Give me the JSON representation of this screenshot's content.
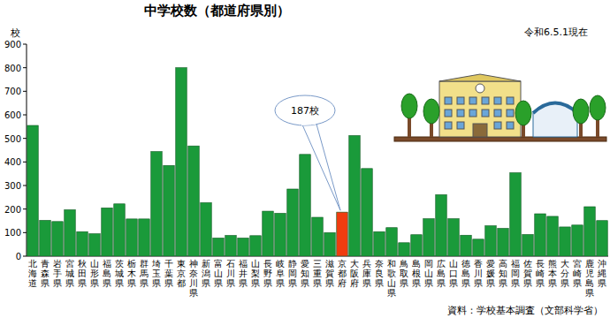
{
  "chart_data": {
    "type": "bar",
    "title": "中学校数（都道府県別）",
    "subtitle": "令和6.5.1現在",
    "y_label": "校",
    "source": "資料：学校基本調査（文部科学省）",
    "categories": [
      "北海道",
      "青森県",
      "岩手県",
      "宮城県",
      "秋田県",
      "山形県",
      "福島県",
      "茨城県",
      "栃木県",
      "群馬県",
      "埼玉県",
      "千葉県",
      "東京都",
      "神奈川県",
      "新潟県",
      "富山県",
      "石川県",
      "福井県",
      "山梨県",
      "長野県",
      "岐阜県",
      "静岡県",
      "愛知県",
      "三重県",
      "滋賀県",
      "京都府",
      "大阪府",
      "兵庫県",
      "奈良県",
      "和歌山県",
      "鳥取県",
      "島根県",
      "岡山県",
      "広島県",
      "山口県",
      "徳島県",
      "香川県",
      "愛媛県",
      "高知県",
      "福岡県",
      "佐賀県",
      "長崎県",
      "熊本県",
      "大分県",
      "宮崎県",
      "鹿児島県",
      "沖縄県"
    ],
    "values": [
      555,
      152,
      147,
      197,
      104,
      95,
      205,
      222,
      158,
      158,
      444,
      385,
      800,
      468,
      227,
      77,
      88,
      77,
      87,
      191,
      182,
      285,
      432,
      165,
      100,
      187,
      512,
      372,
      104,
      121,
      57,
      91,
      159,
      261,
      159,
      89,
      72,
      129,
      118,
      354,
      92,
      180,
      169,
      124,
      132,
      210,
      151
    ],
    "colors": [
      "#1a9a3a",
      "#1a9a3a",
      "#1a9a3a",
      "#1a9a3a",
      "#1a9a3a",
      "#1a9a3a",
      "#1a9a3a",
      "#1a9a3a",
      "#1a9a3a",
      "#1a9a3a",
      "#1a9a3a",
      "#1a9a3a",
      "#1a9a3a",
      "#1a9a3a",
      "#1a9a3a",
      "#1a9a3a",
      "#1a9a3a",
      "#1a9a3a",
      "#1a9a3a",
      "#1a9a3a",
      "#1a9a3a",
      "#1a9a3a",
      "#1a9a3a",
      "#1a9a3a",
      "#1a9a3a",
      "#f03c10",
      "#1a9a3a",
      "#1a9a3a",
      "#1a9a3a",
      "#1a9a3a",
      "#1a9a3a",
      "#1a9a3a",
      "#1a9a3a",
      "#1a9a3a",
      "#1a9a3a",
      "#1a9a3a",
      "#1a9a3a",
      "#1a9a3a",
      "#1a9a3a",
      "#1a9a3a",
      "#1a9a3a",
      "#1a9a3a",
      "#1a9a3a",
      "#1a9a3a",
      "#1a9a3a",
      "#1a9a3a",
      "#1a9a3a"
    ],
    "ylim": [
      0,
      900
    ],
    "yticks": [
      0,
      100,
      200,
      300,
      400,
      500,
      600,
      700,
      800,
      900
    ],
    "grid": false,
    "annotations": [
      {
        "text": "187校",
        "category": "京都府",
        "value": 187
      }
    ]
  }
}
